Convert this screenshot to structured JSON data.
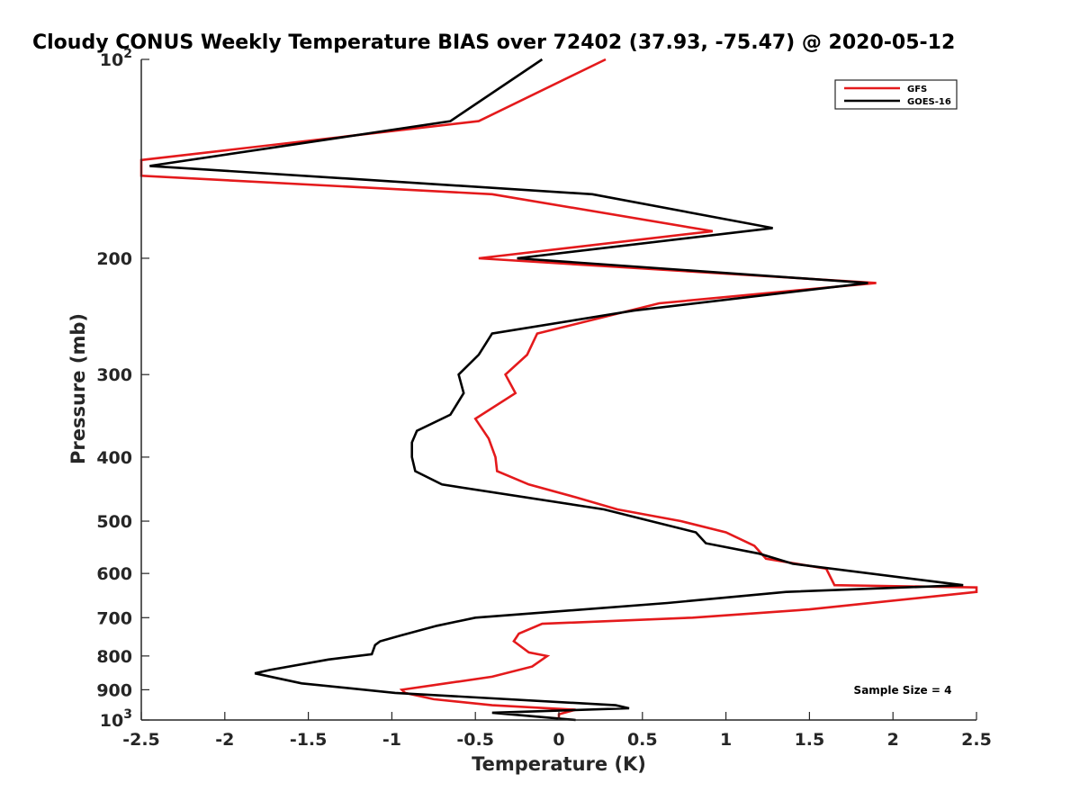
{
  "chart_data": {
    "type": "line",
    "title": "Cloudy CONUS Weekly Temperature BIAS over 72402 (37.93, -75.47) @ 2020-05-12",
    "xlabel": "Temperature (K)",
    "ylabel": "Pressure (mb)",
    "xlim": [
      -2.5,
      2.5
    ],
    "ylim": [
      100,
      1000
    ],
    "yscale": "log",
    "yreverse": true,
    "xticks": [
      -2.5,
      -2,
      -1.5,
      -1,
      -0.5,
      0,
      0.5,
      1,
      1.5,
      2,
      2.5
    ],
    "xtick_labels": [
      "-2.5",
      "-2",
      "-1.5",
      "-1",
      "-0.5",
      "0",
      "0.5",
      "1",
      "1.5",
      "2",
      "2.5"
    ],
    "yticks": [
      {
        "value": 100,
        "base": "10",
        "exp": "2"
      },
      {
        "value": 200,
        "label": "200"
      },
      {
        "value": 300,
        "label": "300"
      },
      {
        "value": 400,
        "label": "400"
      },
      {
        "value": 500,
        "label": "500"
      },
      {
        "value": 600,
        "label": "600"
      },
      {
        "value": 700,
        "label": "700"
      },
      {
        "value": 800,
        "label": "800"
      },
      {
        "value": 900,
        "label": "900"
      },
      {
        "value": 1000,
        "base": "10",
        "exp": "3"
      }
    ],
    "grid": false,
    "legend_position": "top-right",
    "series": [
      {
        "name": "GFS",
        "color": "#e41a1c",
        "x": [
          0.28,
          -0.48,
          -2.5,
          -2.5,
          -0.4,
          0.92,
          -0.48,
          1.9,
          0.6,
          -0.13,
          -0.19,
          -0.32,
          -0.26,
          -0.5,
          -0.42,
          -0.38,
          -0.37,
          -0.18,
          0.1,
          0.35,
          0.73,
          1.0,
          1.17,
          1.24,
          1.6,
          1.65,
          2.5,
          2.5,
          1.5,
          0.8,
          -0.1,
          -0.24,
          -0.27,
          -0.18,
          -0.07,
          -0.16,
          -0.4,
          -0.94,
          -0.92,
          -0.75,
          -0.4,
          0.1,
          0.0,
          0.0
        ],
        "y": [
          100,
          124,
          142,
          150,
          160,
          182,
          200,
          218,
          234,
          260,
          280,
          300,
          320,
          350,
          375,
          400,
          420,
          440,
          460,
          480,
          500,
          520,
          545,
          570,
          590,
          625,
          630,
          640,
          680,
          700,
          715,
          740,
          760,
          790,
          800,
          830,
          860,
          900,
          910,
          930,
          950,
          965,
          980,
          1000
        ]
      },
      {
        "name": "GOES-16",
        "color": "#000000",
        "x": [
          -0.1,
          -0.65,
          -2.45,
          0.2,
          1.28,
          -0.25,
          1.85,
          0.45,
          -0.4,
          -0.48,
          -0.6,
          -0.57,
          -0.65,
          -0.85,
          -0.88,
          -0.88,
          -0.86,
          -0.7,
          0.27,
          0.55,
          0.82,
          0.88,
          1.2,
          1.4,
          2.42,
          1.36,
          0.65,
          -0.5,
          -0.73,
          -0.95,
          -1.07,
          -1.1,
          -1.12,
          -1.38,
          -1.73,
          -1.82,
          -1.54,
          -0.98,
          0.34,
          0.42,
          -0.4,
          0.1
        ],
        "y": [
          100,
          124,
          145,
          160,
          180,
          200,
          218,
          240,
          260,
          280,
          300,
          320,
          345,
          365,
          380,
          400,
          420,
          440,
          480,
          500,
          520,
          540,
          560,
          580,
          625,
          640,
          665,
          700,
          720,
          745,
          760,
          770,
          795,
          810,
          840,
          850,
          880,
          910,
          950,
          960,
          975,
          1000
        ]
      }
    ],
    "annotation": "Sample Size = 4"
  }
}
